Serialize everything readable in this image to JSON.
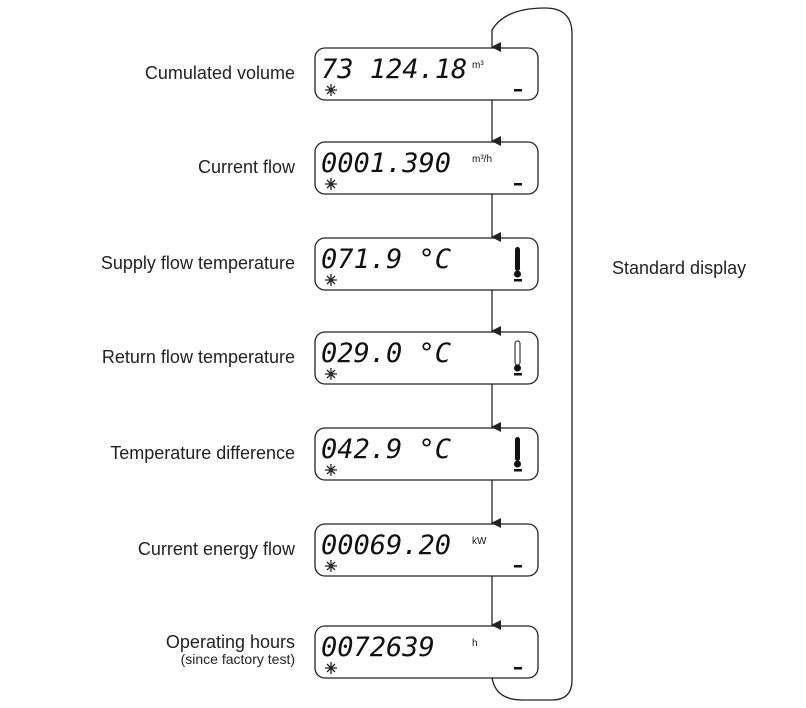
{
  "rows": [
    {
      "label": "Cumulated volume",
      "display": "73 124.18",
      "unit": "m³"
    },
    {
      "label": "Current flow",
      "display": "0001.390",
      "unit": "m³/h"
    },
    {
      "label": "Supply flow temperature",
      "display": "071.9 °C"
    },
    {
      "label": "Return flow temperature",
      "display": "029.0 °C"
    },
    {
      "label": "Temperature difference",
      "display": "042.9 °C"
    },
    {
      "label": "Current energy flow",
      "display": "00069.20",
      "unit": "kW"
    },
    {
      "label": "Operating hours",
      "sublabel": "(since factory test)",
      "display": "0072639",
      "unit": "h"
    }
  ],
  "side_label": "Standard display"
}
